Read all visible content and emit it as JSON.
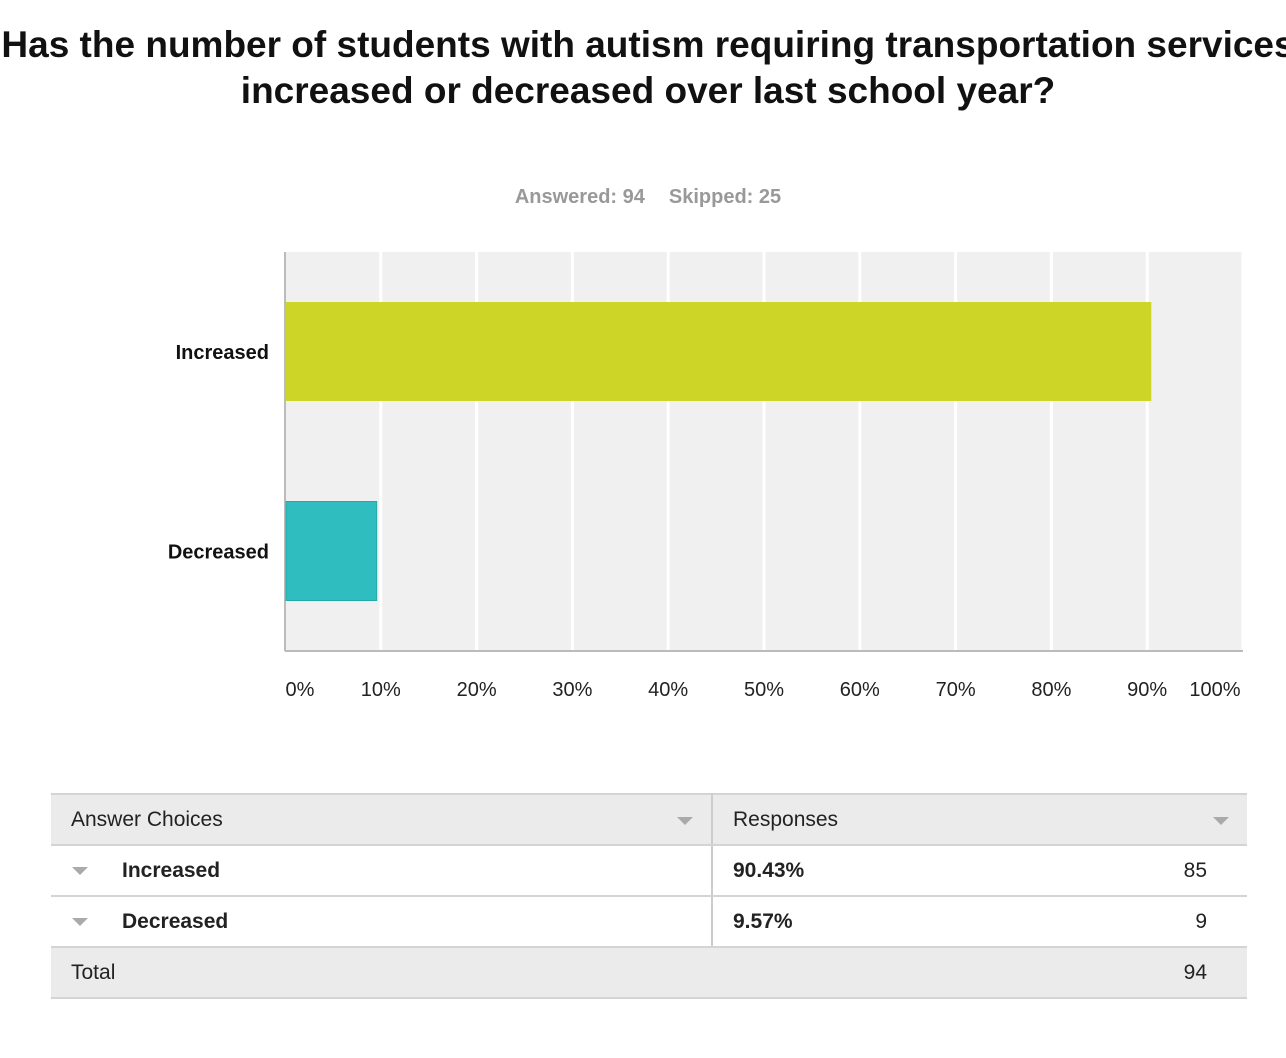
{
  "chart_data": {
    "type": "bar",
    "orientation": "horizontal",
    "title": "Has the number of students with autism requiring transportation services increased or decreased over last school year?",
    "answered_label": "Answered: 94",
    "skipped_label": "Skipped: 25",
    "categories": [
      "Increased",
      "Decreased"
    ],
    "values": [
      90.43,
      9.57
    ],
    "colors": [
      "#cdd627",
      "#2fbdbf"
    ],
    "xlim": [
      0,
      100
    ],
    "xticks": [
      "0%",
      "10%",
      "20%",
      "30%",
      "40%",
      "50%",
      "60%",
      "70%",
      "80%",
      "90%",
      "100%"
    ],
    "grid": true
  },
  "table": {
    "headers": [
      "Answer Choices",
      "Responses"
    ],
    "rows": [
      {
        "choice": "Increased",
        "percent": "90.43%",
        "count": "85"
      },
      {
        "choice": "Decreased",
        "percent": "9.57%",
        "count": "9"
      }
    ],
    "total_label": "Total",
    "total": "94"
  }
}
